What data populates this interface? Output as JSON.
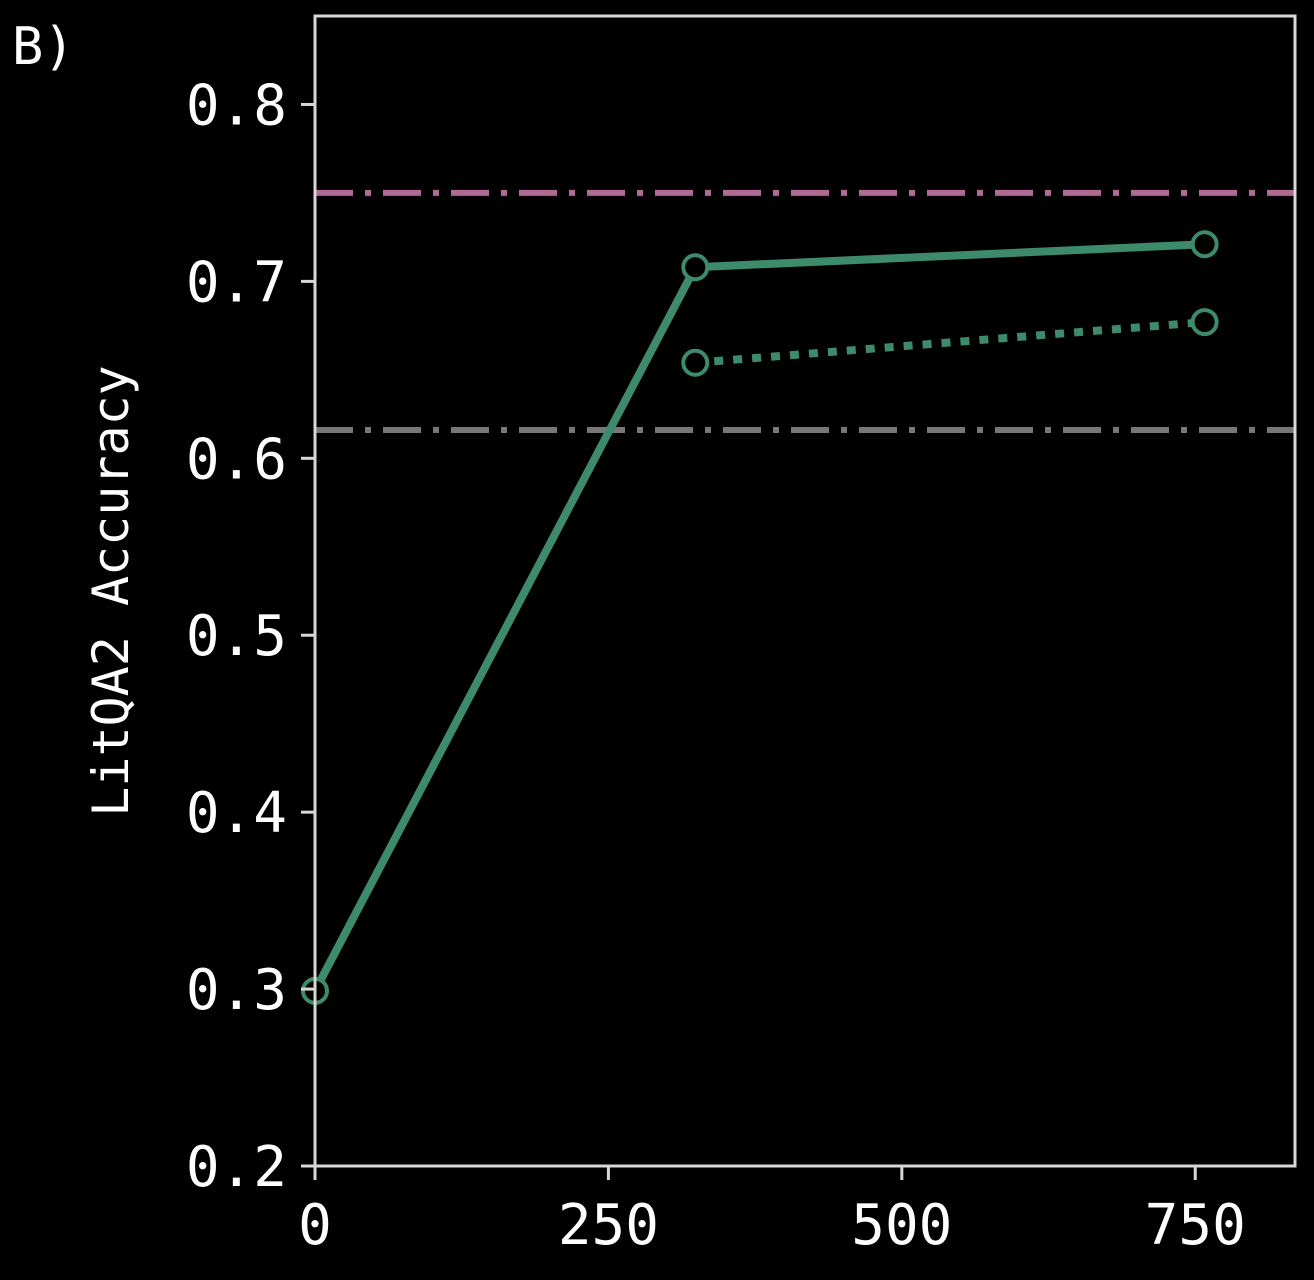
{
  "panel_label": "B)",
  "colors": {
    "background": "#000000",
    "axes": "#d8d8d8",
    "series": "#3e8a6c",
    "ref_pink": "#b06a94",
    "ref_gray": "#777777"
  },
  "chart_data": {
    "type": "line",
    "title": "",
    "xlabel": "",
    "ylabel": "LitQA2 Accuracy",
    "xlim": [
      0,
      835
    ],
    "ylim": [
      0.2,
      0.85
    ],
    "xticks": [
      0,
      250,
      500,
      750
    ],
    "xtick_labels": [
      "0",
      "250",
      "500",
      "750"
    ],
    "yticks": [
      0.2,
      0.3,
      0.4,
      0.5,
      0.6,
      0.7,
      0.8
    ],
    "ytick_labels": [
      "0.2",
      "0.3",
      "0.4",
      "0.5",
      "0.6",
      "0.7",
      "0.8"
    ],
    "grid": false,
    "series": [
      {
        "style": "solid",
        "x": [
          0,
          324,
          758
        ],
        "y": [
          0.299,
          0.708,
          0.721
        ]
      },
      {
        "style": "dotted",
        "x": [
          324,
          758
        ],
        "y": [
          0.654,
          0.677
        ]
      }
    ],
    "reference_lines": [
      {
        "y": 0.75,
        "color": "#b06a94",
        "style": "dashdot"
      },
      {
        "y": 0.616,
        "color": "#777777",
        "style": "dashdot"
      }
    ]
  }
}
